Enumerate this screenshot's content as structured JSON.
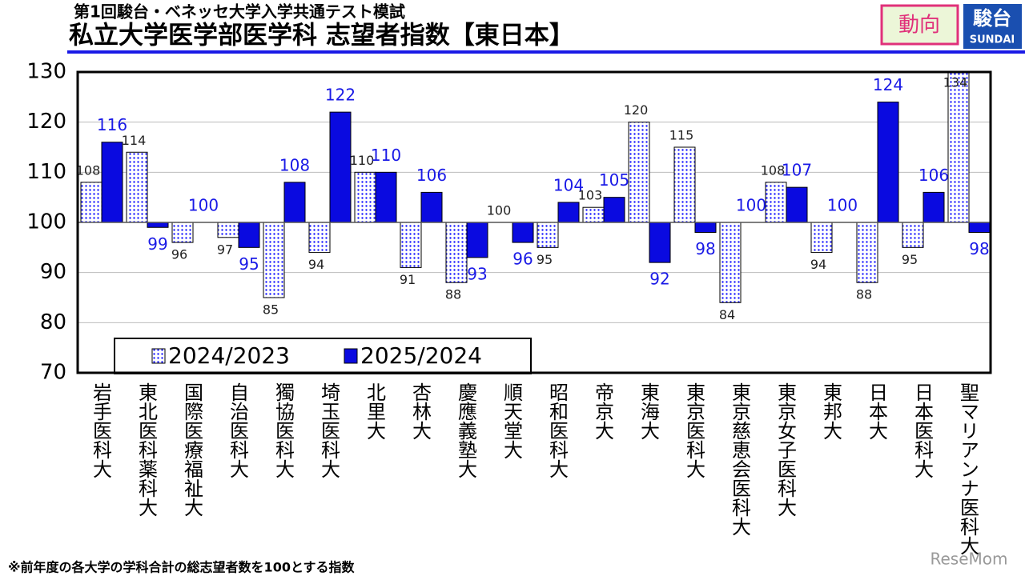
{
  "header": {
    "subtitle": "第1回駿台・ベネッセ大学入学共通テスト模試",
    "title": "私立大学医学部医学科 志望者指数【東日本】",
    "badge": "動向",
    "logo": "駿台",
    "logo_sub": "SUNDAI"
  },
  "chart_data": {
    "type": "bar",
    "baseline": 100,
    "categories": [
      "岩手医科大",
      "東北医科薬科大",
      "国際医療福祉大",
      "自治医科大",
      "獨協医科大",
      "埼玉医科大",
      "北里大",
      "杏林大",
      "慶應義塾大",
      "順天堂大",
      "昭和医科大",
      "帝京大",
      "東海大",
      "東京医科大",
      "東京慈恵会医科大",
      "東京女子医科大",
      "東邦大",
      "日本大",
      "日本医科大",
      "聖マリアンナ医科大"
    ],
    "series": [
      {
        "name": "2024/2023",
        "color": "#1a1aff",
        "pattern": "dots",
        "values": [
          108,
          114,
          96,
          97,
          85,
          94,
          110,
          91,
          88,
          100,
          95,
          103,
          120,
          115,
          84,
          108,
          94,
          88,
          95,
          134
        ]
      },
      {
        "name": "2025/2024",
        "color": "#0a0ae0",
        "values": [
          116,
          99,
          100,
          95,
          108,
          122,
          110,
          106,
          93,
          96,
          104,
          105,
          92,
          98,
          100,
          107,
          100,
          124,
          106,
          98
        ]
      }
    ],
    "ylim": [
      70,
      130
    ],
    "yticks": [
      70,
      80,
      90,
      100,
      110,
      120,
      130
    ],
    "grid": true
  },
  "footnote": "※前年度の各大学の学科合計の総志望者数を100とする指数",
  "watermark": "ReseMom"
}
